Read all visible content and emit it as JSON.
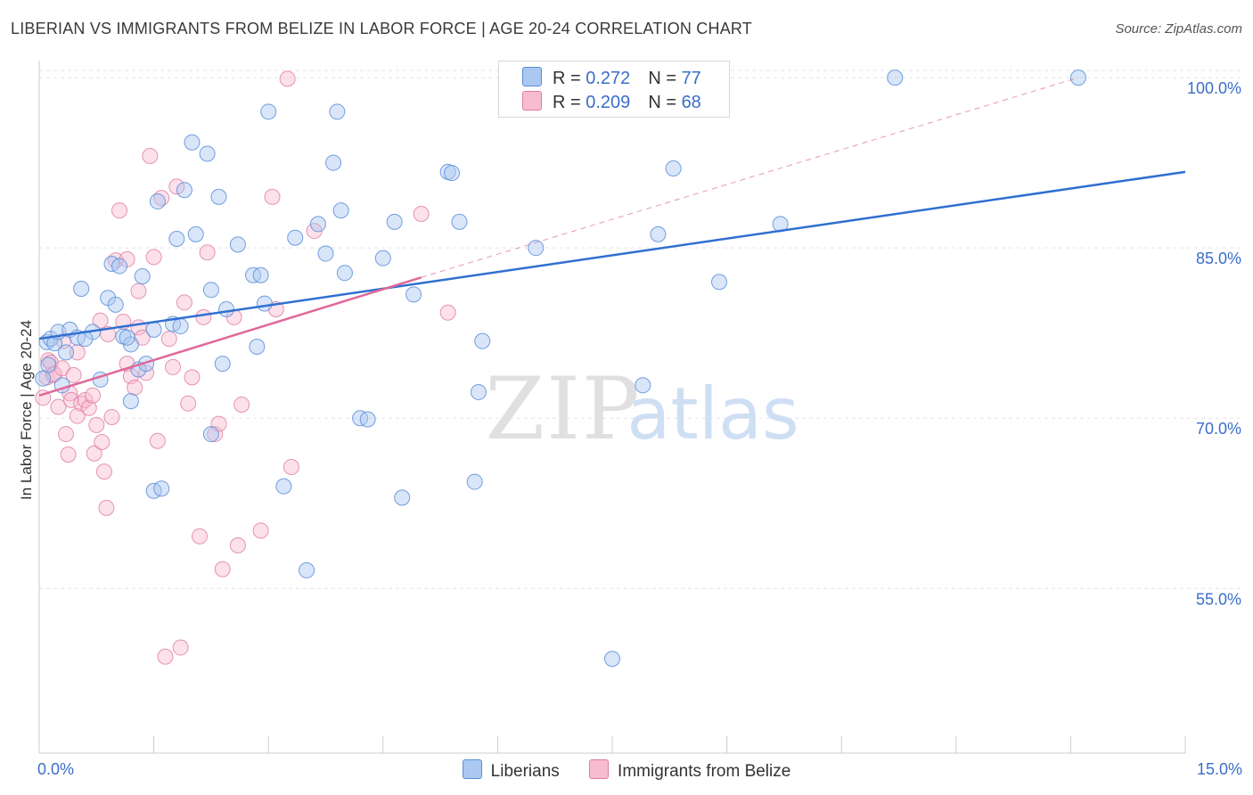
{
  "title": "LIBERIAN VS IMMIGRANTS FROM BELIZE IN LABOR FORCE | AGE 20-24 CORRELATION CHART",
  "source": "Source: ZipAtlas.com",
  "watermark": {
    "zip": "ZIP",
    "atlas": "atlas"
  },
  "legend": {
    "liberians": {
      "r_label": "R = ",
      "r_value": "0.272",
      "n_label": "N = ",
      "n_value": "77"
    },
    "belize": {
      "r_label": "R = ",
      "r_value": "0.209",
      "n_label": "N = ",
      "n_value": "68"
    }
  },
  "colors": {
    "liberians_fill": "#aac8f2",
    "liberians_stroke": "#5a8ed8",
    "liberians_line": "#2f6fd0",
    "belize_fill": "#f8bcd0",
    "belize_stroke": "#e07aa0",
    "belize_line": "#e0689a",
    "tick_label": "#3a6ec8"
  },
  "chart_data": {
    "type": "scatter",
    "title": "LIBERIAN VS IMMIGRANTS FROM BELIZE IN LABOR FORCE | AGE 20-24 CORRELATION CHART",
    "xlabel": "",
    "ylabel": "In Labor Force | Age 20-24",
    "xlim": [
      0,
      15
    ],
    "ylim": [
      40.5,
      101.5
    ],
    "x_tick_labels": [
      "0.0%",
      "15.0%"
    ],
    "y_ticks": [
      55,
      70,
      85,
      100
    ],
    "y_tick_labels": [
      "55.0%",
      "70.0%",
      "85.0%",
      "100.0%"
    ],
    "grid": true,
    "legend_placement": "bottom",
    "series": [
      {
        "name": "Liberians",
        "points": [
          [
            0.1,
            76.7
          ],
          [
            0.15,
            77.0
          ],
          [
            0.2,
            76.6
          ],
          [
            0.25,
            77.6
          ],
          [
            0.3,
            72.9
          ],
          [
            0.35,
            75.8
          ],
          [
            0.4,
            77.8
          ],
          [
            0.5,
            77.1
          ],
          [
            0.55,
            81.4
          ],
          [
            0.7,
            77.6
          ],
          [
            0.8,
            73.4
          ],
          [
            0.9,
            80.6
          ],
          [
            0.95,
            83.6
          ],
          [
            1.0,
            80.0
          ],
          [
            1.05,
            83.4
          ],
          [
            1.1,
            77.2
          ],
          [
            1.2,
            71.5
          ],
          [
            1.2,
            76.5
          ],
          [
            1.3,
            74.3
          ],
          [
            1.35,
            82.5
          ],
          [
            1.4,
            74.8
          ],
          [
            1.5,
            77.8
          ],
          [
            1.5,
            63.6
          ],
          [
            1.55,
            89.1
          ],
          [
            1.6,
            63.8
          ],
          [
            1.75,
            78.3
          ],
          [
            1.8,
            85.8
          ],
          [
            1.85,
            78.1
          ],
          [
            1.9,
            90.1
          ],
          [
            2.0,
            94.3
          ],
          [
            2.05,
            86.2
          ],
          [
            2.2,
            93.3
          ],
          [
            2.25,
            68.6
          ],
          [
            2.25,
            81.3
          ],
          [
            2.35,
            89.5
          ],
          [
            2.4,
            74.8
          ],
          [
            2.45,
            79.6
          ],
          [
            2.6,
            85.3
          ],
          [
            2.8,
            82.6
          ],
          [
            2.85,
            76.3
          ],
          [
            2.9,
            82.6
          ],
          [
            2.95,
            80.1
          ],
          [
            3.0,
            97.0
          ],
          [
            3.2,
            64.0
          ],
          [
            3.35,
            85.9
          ],
          [
            3.5,
            56.6
          ],
          [
            3.65,
            87.1
          ],
          [
            3.75,
            84.5
          ],
          [
            3.85,
            92.5
          ],
          [
            3.9,
            97.0
          ],
          [
            3.95,
            88.3
          ],
          [
            4.0,
            82.8
          ],
          [
            4.2,
            70.0
          ],
          [
            4.3,
            69.9
          ],
          [
            4.5,
            84.1
          ],
          [
            4.65,
            87.3
          ],
          [
            4.75,
            63.0
          ],
          [
            4.9,
            80.9
          ],
          [
            5.35,
            91.7
          ],
          [
            5.4,
            91.6
          ],
          [
            5.5,
            87.3
          ],
          [
            5.7,
            64.4
          ],
          [
            5.75,
            72.3
          ],
          [
            5.8,
            76.8
          ],
          [
            6.5,
            85.0
          ],
          [
            7.5,
            48.8
          ],
          [
            7.9,
            72.9
          ],
          [
            8.1,
            86.2
          ],
          [
            8.3,
            92.0
          ],
          [
            8.9,
            82.0
          ],
          [
            9.7,
            87.1
          ],
          [
            11.2,
            100.0
          ],
          [
            13.6,
            100.0
          ],
          [
            0.05,
            73.5
          ],
          [
            0.12,
            74.7
          ],
          [
            0.6,
            77.0
          ],
          [
            1.15,
            77.1
          ]
        ]
      },
      {
        "name": "Immigrants from Belize",
        "points": [
          [
            0.05,
            71.8
          ],
          [
            0.1,
            73.6
          ],
          [
            0.12,
            75.1
          ],
          [
            0.15,
            74.9
          ],
          [
            0.18,
            73.8
          ],
          [
            0.2,
            73.9
          ],
          [
            0.25,
            71.0
          ],
          [
            0.3,
            74.4
          ],
          [
            0.32,
            76.8
          ],
          [
            0.35,
            68.6
          ],
          [
            0.38,
            66.8
          ],
          [
            0.4,
            72.2
          ],
          [
            0.42,
            71.6
          ],
          [
            0.45,
            73.8
          ],
          [
            0.5,
            75.8
          ],
          [
            0.5,
            70.2
          ],
          [
            0.55,
            71.3
          ],
          [
            0.6,
            71.6
          ],
          [
            0.65,
            70.9
          ],
          [
            0.7,
            72.0
          ],
          [
            0.72,
            66.9
          ],
          [
            0.75,
            69.4
          ],
          [
            0.8,
            78.6
          ],
          [
            0.82,
            67.9
          ],
          [
            0.85,
            65.3
          ],
          [
            0.88,
            62.1
          ],
          [
            0.9,
            77.4
          ],
          [
            0.95,
            70.1
          ],
          [
            1.0,
            83.9
          ],
          [
            1.05,
            88.3
          ],
          [
            1.1,
            78.5
          ],
          [
            1.15,
            74.8
          ],
          [
            1.2,
            73.7
          ],
          [
            1.25,
            72.7
          ],
          [
            1.3,
            78.0
          ],
          [
            1.35,
            77.1
          ],
          [
            1.4,
            74.0
          ],
          [
            1.45,
            93.1
          ],
          [
            1.5,
            84.2
          ],
          [
            1.55,
            68.0
          ],
          [
            1.6,
            89.4
          ],
          [
            1.65,
            49.0
          ],
          [
            1.7,
            77.0
          ],
          [
            1.75,
            74.5
          ],
          [
            1.8,
            90.4
          ],
          [
            1.85,
            49.8
          ],
          [
            1.9,
            80.2
          ],
          [
            1.95,
            71.3
          ],
          [
            2.0,
            73.6
          ],
          [
            2.1,
            59.6
          ],
          [
            2.15,
            78.9
          ],
          [
            2.2,
            84.6
          ],
          [
            2.3,
            68.6
          ],
          [
            2.35,
            69.5
          ],
          [
            2.4,
            56.7
          ],
          [
            2.55,
            78.9
          ],
          [
            2.6,
            58.8
          ],
          [
            2.65,
            71.2
          ],
          [
            2.9,
            60.1
          ],
          [
            3.05,
            89.5
          ],
          [
            3.1,
            79.6
          ],
          [
            3.3,
            65.7
          ],
          [
            3.6,
            86.5
          ],
          [
            3.25,
            99.9
          ],
          [
            5.0,
            88.0
          ],
          [
            5.35,
            79.3
          ],
          [
            1.3,
            81.2
          ],
          [
            1.15,
            84.0
          ]
        ]
      }
    ],
    "trend_lines": [
      {
        "series": "Liberians",
        "x": [
          0,
          15
        ],
        "y": [
          77.0,
          91.7
        ]
      },
      {
        "series": "Immigrants from Belize",
        "x": [
          0,
          5.0
        ],
        "y": [
          72.0,
          82.4
        ]
      },
      {
        "series": "Immigrants from Belize",
        "style": "dashed",
        "x": [
          5.0,
          13.6
        ],
        "y": [
          82.4,
          100.0
        ]
      }
    ]
  },
  "bottom_legend": {
    "liberians": "Liberians",
    "belize": "Immigrants from Belize"
  }
}
